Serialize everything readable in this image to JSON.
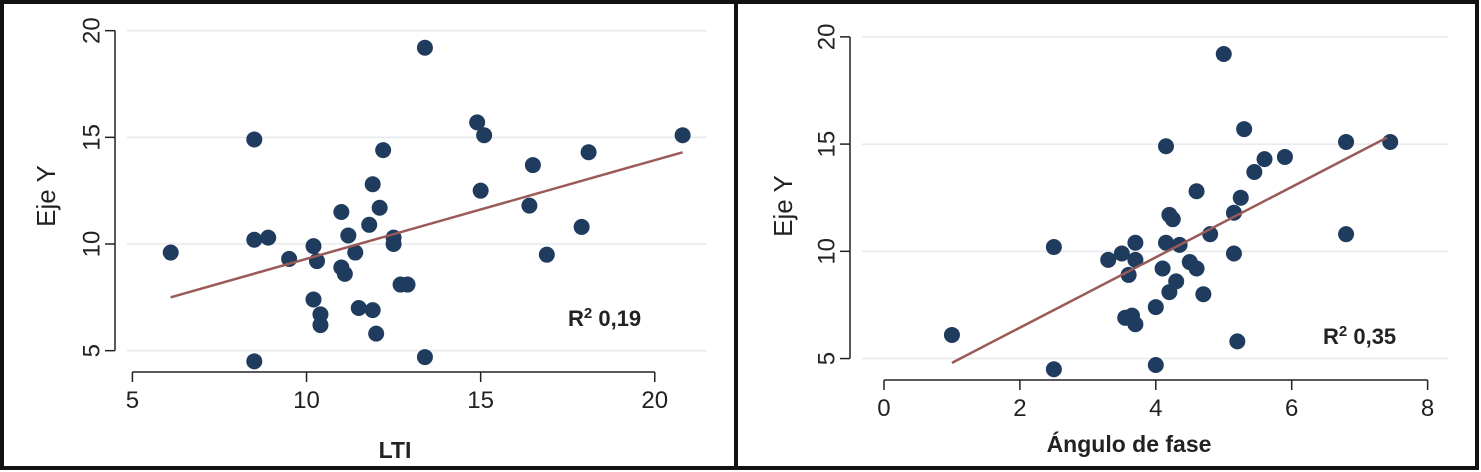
{
  "colors": {
    "point": "#1f3b5e",
    "fit_line": "#9a5a58",
    "grid": "#e6e9ec",
    "border": "#111111"
  },
  "chart_data": [
    {
      "type": "scatter",
      "xlabel": "LTI",
      "ylabel": "Eje Y",
      "xlim": [
        4.5,
        21.5
      ],
      "ylim": [
        4,
        20.5
      ],
      "xticks": [
        "5",
        "10",
        "15",
        "20"
      ],
      "yticks": [
        "5",
        "10",
        "15",
        "20"
      ],
      "annotation": {
        "label": "R",
        "sup": "2",
        "value": "0,19"
      },
      "fit_line": {
        "x": [
          6.1,
          20.8
        ],
        "y": [
          7.5,
          14.3
        ]
      },
      "grid": true,
      "points": [
        {
          "x": 6.1,
          "y": 9.6
        },
        {
          "x": 8.5,
          "y": 14.9
        },
        {
          "x": 8.5,
          "y": 10.2
        },
        {
          "x": 8.9,
          "y": 10.3
        },
        {
          "x": 8.5,
          "y": 4.5
        },
        {
          "x": 9.5,
          "y": 9.3
        },
        {
          "x": 10.2,
          "y": 9.9
        },
        {
          "x": 10.3,
          "y": 9.2
        },
        {
          "x": 10.2,
          "y": 7.4
        },
        {
          "x": 10.4,
          "y": 6.7
        },
        {
          "x": 10.4,
          "y": 6.2
        },
        {
          "x": 11.0,
          "y": 11.5
        },
        {
          "x": 11.0,
          "y": 8.9
        },
        {
          "x": 11.1,
          "y": 8.6
        },
        {
          "x": 11.2,
          "y": 10.4
        },
        {
          "x": 11.4,
          "y": 9.6
        },
        {
          "x": 11.5,
          "y": 7.0
        },
        {
          "x": 11.8,
          "y": 10.9
        },
        {
          "x": 11.9,
          "y": 12.8
        },
        {
          "x": 11.9,
          "y": 6.9
        },
        {
          "x": 12.0,
          "y": 5.8
        },
        {
          "x": 12.1,
          "y": 11.7
        },
        {
          "x": 12.2,
          "y": 14.4
        },
        {
          "x": 12.5,
          "y": 10.3
        },
        {
          "x": 12.5,
          "y": 10.0
        },
        {
          "x": 12.7,
          "y": 8.1
        },
        {
          "x": 12.9,
          "y": 8.1
        },
        {
          "x": 13.4,
          "y": 19.2
        },
        {
          "x": 13.4,
          "y": 4.7
        },
        {
          "x": 14.9,
          "y": 15.7
        },
        {
          "x": 15.1,
          "y": 15.1
        },
        {
          "x": 15.0,
          "y": 12.5
        },
        {
          "x": 16.4,
          "y": 11.8
        },
        {
          "x": 16.5,
          "y": 13.7
        },
        {
          "x": 16.9,
          "y": 9.5
        },
        {
          "x": 17.9,
          "y": 10.8
        },
        {
          "x": 18.1,
          "y": 14.3
        },
        {
          "x": 20.8,
          "y": 15.1
        }
      ]
    },
    {
      "type": "scatter",
      "xlabel": "Ángulo de fase",
      "ylabel": "Eje Y",
      "xlim": [
        -0.5,
        8.3
      ],
      "ylim": [
        4,
        20.6
      ],
      "xticks": [
        "0",
        "2",
        "4",
        "6",
        "8"
      ],
      "yticks": [
        "5",
        "10",
        "15",
        "20"
      ],
      "annotation": {
        "label": "R",
        "sup": "2",
        "value": "0,35"
      },
      "fit_line": {
        "x": [
          1.0,
          7.4
        ],
        "y": [
          4.8,
          15.3
        ]
      },
      "grid": true,
      "points": [
        {
          "x": 1.0,
          "y": 6.1
        },
        {
          "x": 2.5,
          "y": 10.2
        },
        {
          "x": 2.5,
          "y": 4.5
        },
        {
          "x": 3.3,
          "y": 9.6
        },
        {
          "x": 3.5,
          "y": 9.9
        },
        {
          "x": 3.6,
          "y": 8.9
        },
        {
          "x": 3.7,
          "y": 10.4
        },
        {
          "x": 3.7,
          "y": 9.6
        },
        {
          "x": 3.55,
          "y": 6.9
        },
        {
          "x": 3.65,
          "y": 7.0
        },
        {
          "x": 3.7,
          "y": 6.6
        },
        {
          "x": 4.0,
          "y": 7.4
        },
        {
          "x": 4.0,
          "y": 4.7
        },
        {
          "x": 4.1,
          "y": 9.2
        },
        {
          "x": 4.15,
          "y": 10.4
        },
        {
          "x": 4.15,
          "y": 14.9
        },
        {
          "x": 4.2,
          "y": 11.7
        },
        {
          "x": 4.25,
          "y": 11.5
        },
        {
          "x": 4.2,
          "y": 8.1
        },
        {
          "x": 4.3,
          "y": 8.6
        },
        {
          "x": 4.35,
          "y": 10.3
        },
        {
          "x": 4.5,
          "y": 9.5
        },
        {
          "x": 4.6,
          "y": 9.2
        },
        {
          "x": 4.6,
          "y": 12.8
        },
        {
          "x": 4.7,
          "y": 8.0
        },
        {
          "x": 4.8,
          "y": 10.8
        },
        {
          "x": 5.0,
          "y": 19.2
        },
        {
          "x": 5.15,
          "y": 11.8
        },
        {
          "x": 5.15,
          "y": 9.9
        },
        {
          "x": 5.2,
          "y": 5.8
        },
        {
          "x": 5.25,
          "y": 12.5
        },
        {
          "x": 5.3,
          "y": 15.7
        },
        {
          "x": 5.45,
          "y": 13.7
        },
        {
          "x": 5.6,
          "y": 14.3
        },
        {
          "x": 5.9,
          "y": 14.4
        },
        {
          "x": 6.8,
          "y": 15.1
        },
        {
          "x": 6.8,
          "y": 10.8
        },
        {
          "x": 7.45,
          "y": 15.1
        }
      ]
    }
  ]
}
